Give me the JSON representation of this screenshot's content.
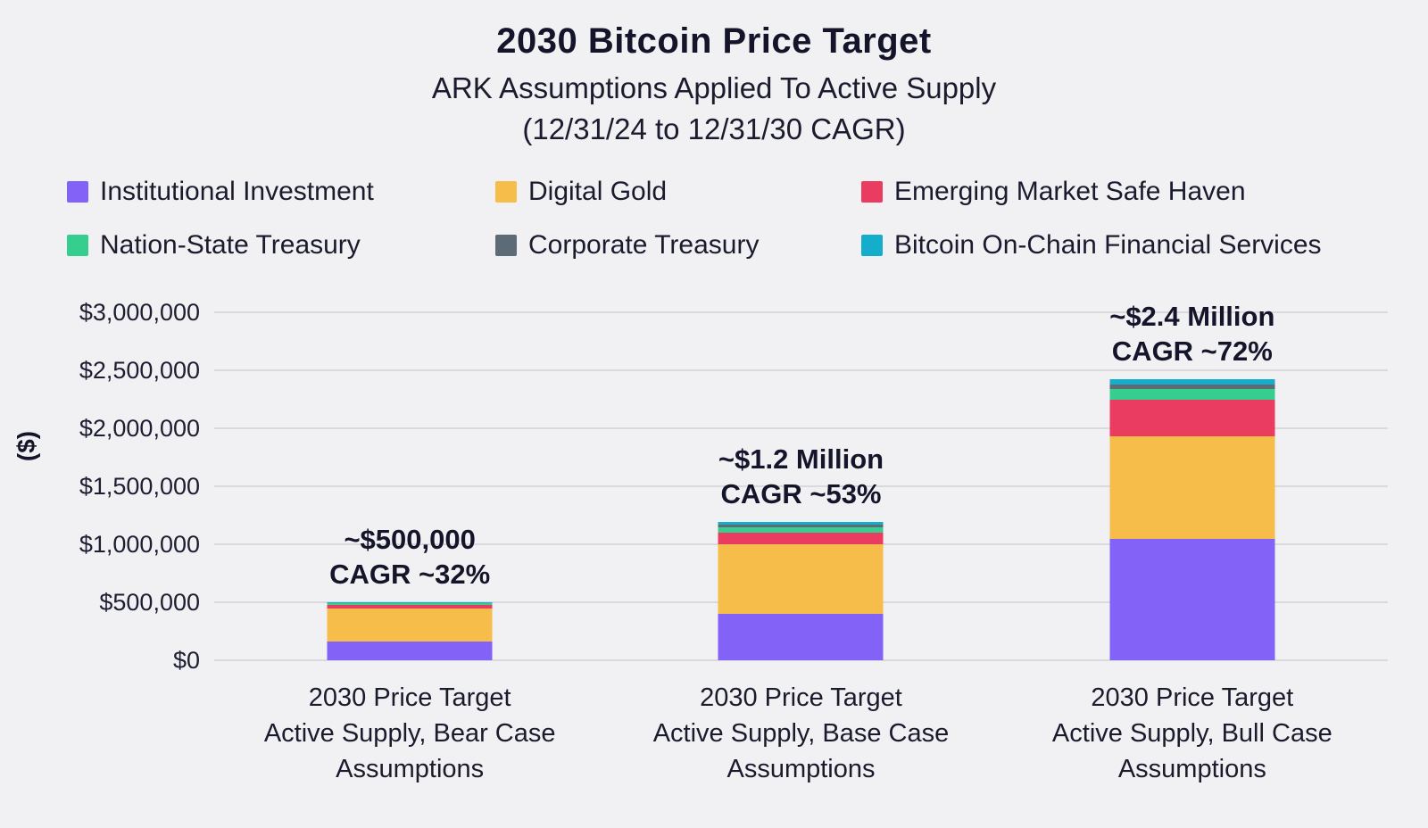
{
  "header": {
    "title": "2030 Bitcoin Price Target",
    "subtitle1": "ARK Assumptions Applied To Active Supply",
    "subtitle2": "(12/31/24 to 12/31/30 CAGR)"
  },
  "colors": {
    "background": "#F1F1F4",
    "text": "#1B1B2E",
    "gridline": "#D9D9DE"
  },
  "chart_data": {
    "type": "bar",
    "stacked": true,
    "title": "2030 Bitcoin Price Target",
    "subtitle": "ARK Assumptions Applied To Active Supply (12/31/24 to 12/31/30 CAGR)",
    "xlabel": "",
    "ylabel": "($)",
    "ylim": [
      0,
      3000000
    ],
    "ytick_step": 500000,
    "yticks": [
      "$0",
      "$500,000",
      "$1,000,000",
      "$1,500,000",
      "$2,000,000",
      "$2,500,000",
      "$3,000,000"
    ],
    "grid": true,
    "legend_position": "top",
    "categories": [
      "2030 Price Target\nActive Supply, Bear Case\nAssumptions",
      "2030 Price Target\nActive Supply, Base Case\nAssumptions",
      "2030 Price Target\nActive Supply, Bull Case\nAssumptions"
    ],
    "series": [
      {
        "name": "Institutional Investment",
        "color": "#8363F7",
        "values": [
          165000,
          400000,
          1050000
        ]
      },
      {
        "name": "Digital Gold",
        "color": "#F6BD4B",
        "values": [
          280000,
          600000,
          880000
        ]
      },
      {
        "name": "Emerging Market Safe Haven",
        "color": "#EA3B60",
        "values": [
          35000,
          100000,
          320000
        ]
      },
      {
        "name": "Nation-State Treasury",
        "color": "#36CE8E",
        "values": [
          10000,
          50000,
          85000
        ]
      },
      {
        "name": "Corporate Treasury",
        "color": "#5D6B77",
        "values": [
          5000,
          20000,
          45000
        ]
      },
      {
        "name": "Bitcoin On-Chain Financial Services",
        "color": "#15ADCC",
        "values": [
          5000,
          20000,
          40000
        ]
      }
    ],
    "annotations": [
      {
        "line1": "~$500,000",
        "line2": "CAGR ~32%"
      },
      {
        "line1": "~$1.2 Million",
        "line2": "CAGR ~53%"
      },
      {
        "line1": "~$2.4 Million",
        "line2": "CAGR ~72%"
      }
    ]
  }
}
